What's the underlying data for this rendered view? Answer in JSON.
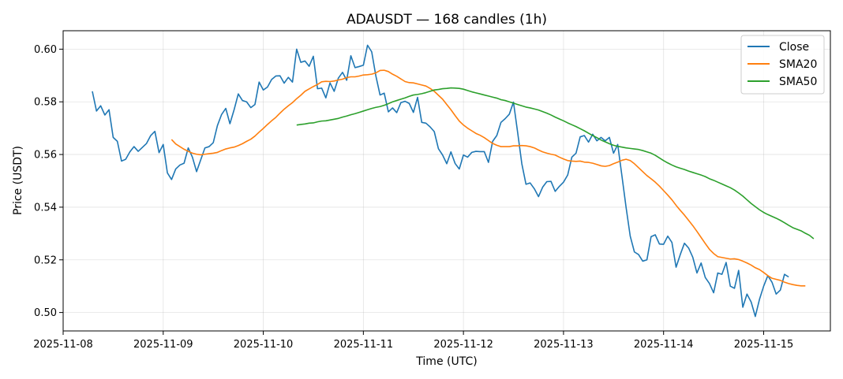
{
  "chart_data": {
    "type": "line",
    "title": "ADAUSDT — 168 candles (1h)",
    "xlabel": "Time (UTC)",
    "ylabel": "Price (USDT)",
    "x_start": "2025-11-08 07:00",
    "x_step_hours": 1,
    "xlim": [
      "2025-11-08 00:00",
      "2025-11-15 16:00"
    ],
    "ylim": [
      0.493,
      0.607
    ],
    "x_ticks": [
      "2025-11-08",
      "2025-11-09",
      "2025-11-10",
      "2025-11-11",
      "2025-11-12",
      "2025-11-13",
      "2025-11-14",
      "2025-11-15"
    ],
    "y_ticks": [
      0.5,
      0.52,
      0.54,
      0.56,
      0.58,
      0.6
    ],
    "y_tick_labels": [
      "0.50",
      "0.52",
      "0.54",
      "0.56",
      "0.58",
      "0.60"
    ],
    "grid": true,
    "legend_position": "top-right",
    "series": [
      {
        "name": "Close",
        "color": "#1f77b4",
        "values": [
          0.584,
          0.5765,
          0.5785,
          0.575,
          0.577,
          0.5665,
          0.565,
          0.5575,
          0.5582,
          0.561,
          0.563,
          0.5612,
          0.5627,
          0.5642,
          0.5672,
          0.5688,
          0.5607,
          0.5638,
          0.553,
          0.5505,
          0.5545,
          0.556,
          0.5567,
          0.5625,
          0.559,
          0.5535,
          0.558,
          0.5625,
          0.563,
          0.5645,
          0.571,
          0.5752,
          0.5775,
          0.5717,
          0.577,
          0.583,
          0.5805,
          0.58,
          0.5778,
          0.579,
          0.5875,
          0.5845,
          0.5856,
          0.5885,
          0.5898,
          0.5899,
          0.5871,
          0.5893,
          0.5875,
          0.6,
          0.595,
          0.5955,
          0.5935,
          0.5973,
          0.585,
          0.5852,
          0.5815,
          0.5872,
          0.584,
          0.589,
          0.5912,
          0.5882,
          0.5975,
          0.593,
          0.5934,
          0.5939,
          0.6015,
          0.599,
          0.5898,
          0.5826,
          0.5833,
          0.5762,
          0.5777,
          0.5759,
          0.5797,
          0.5802,
          0.5794,
          0.576,
          0.5817,
          0.5722,
          0.5719,
          0.5705,
          0.5687,
          0.5622,
          0.5598,
          0.5565,
          0.561,
          0.5566,
          0.5545,
          0.5598,
          0.559,
          0.5608,
          0.5612,
          0.5611,
          0.5611,
          0.557,
          0.565,
          0.5672,
          0.5722,
          0.5736,
          0.5753,
          0.5799,
          0.5684,
          0.5565,
          0.5487,
          0.5492,
          0.547,
          0.544,
          0.5476,
          0.5497,
          0.5498,
          0.546,
          0.5479,
          0.5495,
          0.5522,
          0.559,
          0.5605,
          0.5667,
          0.5672,
          0.5647,
          0.5677,
          0.5652,
          0.5665,
          0.5652,
          0.5665,
          0.5605,
          0.5638,
          0.552,
          0.54,
          0.529,
          0.523,
          0.522,
          0.5195,
          0.52,
          0.5288,
          0.5295,
          0.526,
          0.5259,
          0.529,
          0.5266,
          0.5172,
          0.522,
          0.5263,
          0.5245,
          0.521,
          0.515,
          0.5188,
          0.5133,
          0.511,
          0.5075,
          0.515,
          0.5145,
          0.519,
          0.51,
          0.5092,
          0.516,
          0.502,
          0.507,
          0.504,
          0.4985,
          0.505,
          0.51,
          0.514,
          0.5115,
          0.507,
          0.5085,
          0.5145,
          0.5135
        ]
      },
      {
        "name": "SMA20",
        "color": "#ff7f0e",
        "x_offset": 19,
        "values": [
          0.5657,
          0.564,
          0.563,
          0.562,
          0.5612,
          0.5605,
          0.5601,
          0.5599,
          0.5601,
          0.5603,
          0.5605,
          0.5608,
          0.5615,
          0.5621,
          0.5625,
          0.5628,
          0.5634,
          0.5641,
          0.565,
          0.5658,
          0.567,
          0.5685,
          0.5699,
          0.5714,
          0.5728,
          0.5741,
          0.5757,
          0.5772,
          0.5785,
          0.5797,
          0.5812,
          0.5825,
          0.584,
          0.5849,
          0.5858,
          0.5866,
          0.5876,
          0.5878,
          0.5877,
          0.5879,
          0.5883,
          0.5886,
          0.5892,
          0.5895,
          0.5895,
          0.5898,
          0.5902,
          0.5903,
          0.5905,
          0.591,
          0.5919,
          0.592,
          0.5915,
          0.5905,
          0.5897,
          0.5887,
          0.5877,
          0.5873,
          0.5872,
          0.5868,
          0.5864,
          0.586,
          0.5851,
          0.584,
          0.5825,
          0.581,
          0.579,
          0.577,
          0.5748,
          0.5727,
          0.5712,
          0.57,
          0.569,
          0.568,
          0.5673,
          0.5664,
          0.5653,
          0.5642,
          0.5635,
          0.563,
          0.563,
          0.563,
          0.5633,
          0.5633,
          0.5634,
          0.5633,
          0.563,
          0.5625,
          0.5617,
          0.561,
          0.5605,
          0.5601,
          0.5598,
          0.559,
          0.5583,
          0.5577,
          0.5575,
          0.5574,
          0.5575,
          0.5571,
          0.557,
          0.5567,
          0.5562,
          0.5557,
          0.5555,
          0.5558,
          0.5565,
          0.5571,
          0.5578,
          0.5582,
          0.5577,
          0.5565,
          0.555,
          0.5535,
          0.552,
          0.5508,
          0.5495,
          0.548,
          0.5463,
          0.5446,
          0.5428,
          0.5407,
          0.5388,
          0.537,
          0.535,
          0.533,
          0.5308,
          0.5285,
          0.5262,
          0.524,
          0.5224,
          0.5212,
          0.5209,
          0.5206,
          0.5203,
          0.5204,
          0.5201,
          0.5195,
          0.5188,
          0.518,
          0.517,
          0.5163,
          0.5152,
          0.514,
          0.513,
          0.5126,
          0.5122,
          0.5115,
          0.511,
          0.5106,
          0.5103,
          0.5101,
          0.5101
        ]
      },
      {
        "name": "SMA50",
        "color": "#2ca02c",
        "x_offset": 49,
        "values": [
          0.5712,
          0.5714,
          0.5716,
          0.5719,
          0.572,
          0.5724,
          0.5727,
          0.5728,
          0.5731,
          0.5734,
          0.5737,
          0.5742,
          0.5746,
          0.5751,
          0.5755,
          0.576,
          0.5765,
          0.577,
          0.5775,
          0.5779,
          0.5782,
          0.5787,
          0.5793,
          0.58,
          0.5805,
          0.581,
          0.5815,
          0.5821,
          0.5826,
          0.5828,
          0.5831,
          0.5835,
          0.584,
          0.5845,
          0.5847,
          0.585,
          0.5851,
          0.5853,
          0.5852,
          0.5851,
          0.5848,
          0.5843,
          0.5838,
          0.5834,
          0.583,
          0.5826,
          0.5822,
          0.5818,
          0.5814,
          0.5808,
          0.5805,
          0.58,
          0.5795,
          0.579,
          0.5785,
          0.578,
          0.5777,
          0.5773,
          0.5769,
          0.5763,
          0.5757,
          0.575,
          0.5742,
          0.5735,
          0.5728,
          0.572,
          0.5713,
          0.5706,
          0.5698,
          0.569,
          0.5681,
          0.5672,
          0.5664,
          0.5655,
          0.5648,
          0.5641,
          0.5635,
          0.5631,
          0.5628,
          0.5625,
          0.5623,
          0.5621,
          0.5619,
          0.5615,
          0.561,
          0.5605,
          0.5597,
          0.5587,
          0.5577,
          0.5568,
          0.556,
          0.5553,
          0.5548,
          0.5543,
          0.5537,
          0.5532,
          0.5527,
          0.5522,
          0.5516,
          0.5508,
          0.5502,
          0.5495,
          0.5488,
          0.5481,
          0.5474,
          0.5465,
          0.5454,
          0.5442,
          0.5428,
          0.5414,
          0.5402,
          0.539,
          0.538,
          0.5372,
          0.5365,
          0.5358,
          0.535,
          0.5341,
          0.5331,
          0.5322,
          0.5316,
          0.531,
          0.5301,
          0.5293,
          0.528
        ]
      }
    ]
  }
}
